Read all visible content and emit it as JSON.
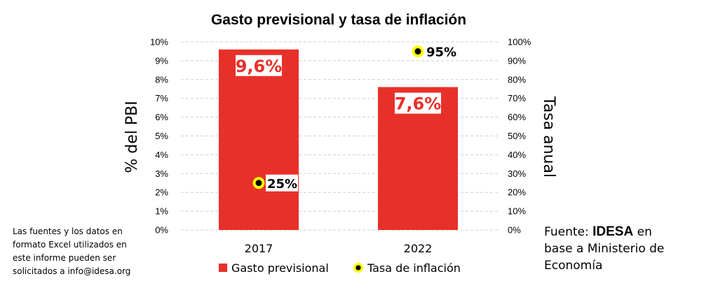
{
  "chart_data": {
    "type": "bar",
    "title": "Gasto previsional y tasa de inflación",
    "categories": [
      "2017",
      "2022"
    ],
    "series": [
      {
        "name": "Gasto previsional",
        "kind": "bar",
        "axis": "left",
        "color": "#e8302a",
        "values": [
          9.6,
          7.6
        ],
        "labels": [
          "9,6%",
          "7,6%"
        ]
      },
      {
        "name": "Tasa de inflación",
        "kind": "point",
        "axis": "right",
        "color": "#000000",
        "ring_color": "#ffff00",
        "values": [
          25,
          95
        ],
        "labels": [
          "25%",
          "95%"
        ]
      }
    ],
    "ylabel": "% del PBI",
    "ylabel_right": "Tasa anual",
    "ylim": [
      0,
      10
    ],
    "ylim_right": [
      0,
      100
    ],
    "yticks": [
      "0%",
      "1%",
      "2%",
      "3%",
      "4%",
      "5%",
      "6%",
      "7%",
      "8%",
      "9%",
      "10%"
    ],
    "yticks_right": [
      "0%",
      "10%",
      "20%",
      "30%",
      "40%",
      "50%",
      "60%",
      "70%",
      "80%",
      "90%",
      "100%"
    ],
    "grid": true,
    "legend_position": "bottom"
  },
  "footnote": {
    "lines": [
      "Las fuentes y los datos en",
      "formato Excel utilizados en",
      "este informe pueden ser",
      "solicitados a info@idesa.org"
    ]
  },
  "source": {
    "prefix": "Fuente: ",
    "brand": "IDESA",
    "suffix": " en",
    "line2": "base a Ministerio de",
    "line3": "Economía"
  }
}
